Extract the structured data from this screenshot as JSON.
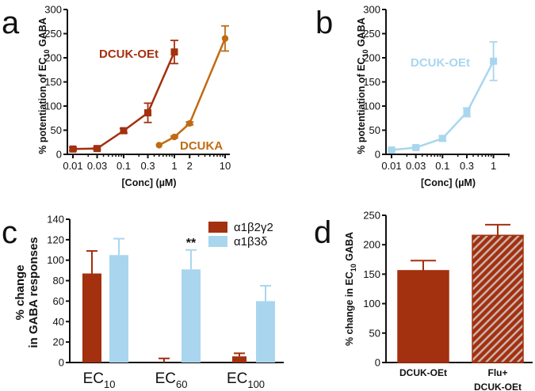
{
  "colors": {
    "dark_red": "#A3300F",
    "orange": "#C06B12",
    "light_blue": "#A9D6EE",
    "axis": "#111111"
  },
  "chart_data": [
    {
      "id": "a",
      "panel_label": "a",
      "type": "line",
      "xscale": "log",
      "xlabel": "[Conc] (µM)",
      "ylabel_parts": [
        "% potentiation of EC",
        "10",
        " GABA"
      ],
      "ylim": [
        0,
        300
      ],
      "yticks": [
        0,
        50,
        100,
        150,
        200,
        250,
        300
      ],
      "xticks": [
        0.01,
        0.03,
        0.1,
        0.3,
        1,
        2,
        10
      ],
      "xtick_labels": [
        "0.01",
        "0.03",
        "0.1",
        "0.3",
        "1",
        "2",
        "10"
      ],
      "grid": false,
      "series": [
        {
          "name": "DCUK-OEt",
          "marker": "square",
          "color": "#A3300F",
          "x": [
            0.01,
            0.03,
            0.1,
            0.3,
            1
          ],
          "y": [
            11,
            12,
            49,
            86,
            212
          ],
          "err": [
            3,
            3,
            5,
            20,
            24
          ]
        },
        {
          "name": "DCUKA",
          "marker": "circle",
          "color": "#C06B12",
          "x": [
            0.5,
            1,
            2,
            10
          ],
          "y": [
            19,
            36,
            64,
            240
          ],
          "err": [
            0,
            2,
            3,
            26
          ]
        }
      ]
    },
    {
      "id": "b",
      "panel_label": "b",
      "type": "line",
      "xscale": "log",
      "xlabel": "[Conc] (µM)",
      "ylabel_parts": [
        "% potentiation of EC",
        "10",
        " GABA"
      ],
      "ylim": [
        0,
        300
      ],
      "yticks": [
        0,
        50,
        100,
        150,
        200,
        250,
        300
      ],
      "xticks": [
        0.01,
        0.03,
        0.1,
        0.3,
        1
      ],
      "xtick_labels": [
        "0.01",
        "0.03",
        "0.1",
        "0.3",
        "1"
      ],
      "grid": false,
      "series": [
        {
          "name": "DCUK-OEt",
          "marker": "square",
          "color": "#A9D6EE",
          "x": [
            0.01,
            0.03,
            0.1,
            0.3,
            1
          ],
          "y": [
            9,
            14,
            33,
            87,
            193
          ],
          "err": [
            2,
            2,
            5,
            9,
            40
          ]
        }
      ]
    },
    {
      "id": "c",
      "panel_label": "c",
      "type": "bar",
      "ylabel_lines": [
        "% change",
        "in GABA responses"
      ],
      "ylim": [
        0,
        140
      ],
      "yticks": [
        0,
        20,
        40,
        60,
        80,
        100,
        120,
        140
      ],
      "categories": [
        {
          "main": "EC",
          "sub": "10"
        },
        {
          "main": "EC",
          "sub": "60"
        },
        {
          "main": "EC",
          "sub": "100"
        }
      ],
      "series": [
        {
          "name": "α1β2γ2",
          "color": "#A3300F",
          "values": [
            87,
            0,
            6
          ],
          "err": [
            22,
            4,
            3
          ]
        },
        {
          "name": "α1β3δ",
          "color": "#A9D6EE",
          "values": [
            105,
            91,
            60
          ],
          "err": [
            16,
            19,
            15
          ]
        }
      ],
      "annotations": [
        {
          "category": 1,
          "series": 1,
          "text": "**"
        }
      ],
      "legend": "top-right",
      "grid": false
    },
    {
      "id": "d",
      "panel_label": "d",
      "type": "bar",
      "ylabel_parts": [
        "% change in EC",
        "10",
        " GABA"
      ],
      "ylim": [
        0,
        250
      ],
      "yticks": [
        0,
        50,
        100,
        150,
        200,
        250
      ],
      "categories": [
        {
          "lines": [
            "DCUK-OEt"
          ]
        },
        {
          "lines": [
            "Flu+",
            "DCUK-OEt"
          ]
        }
      ],
      "values": [
        156,
        216
      ],
      "err": [
        17,
        18
      ],
      "fills": [
        "solid",
        "hatched"
      ],
      "color": "#A3300F",
      "grid": false
    }
  ]
}
